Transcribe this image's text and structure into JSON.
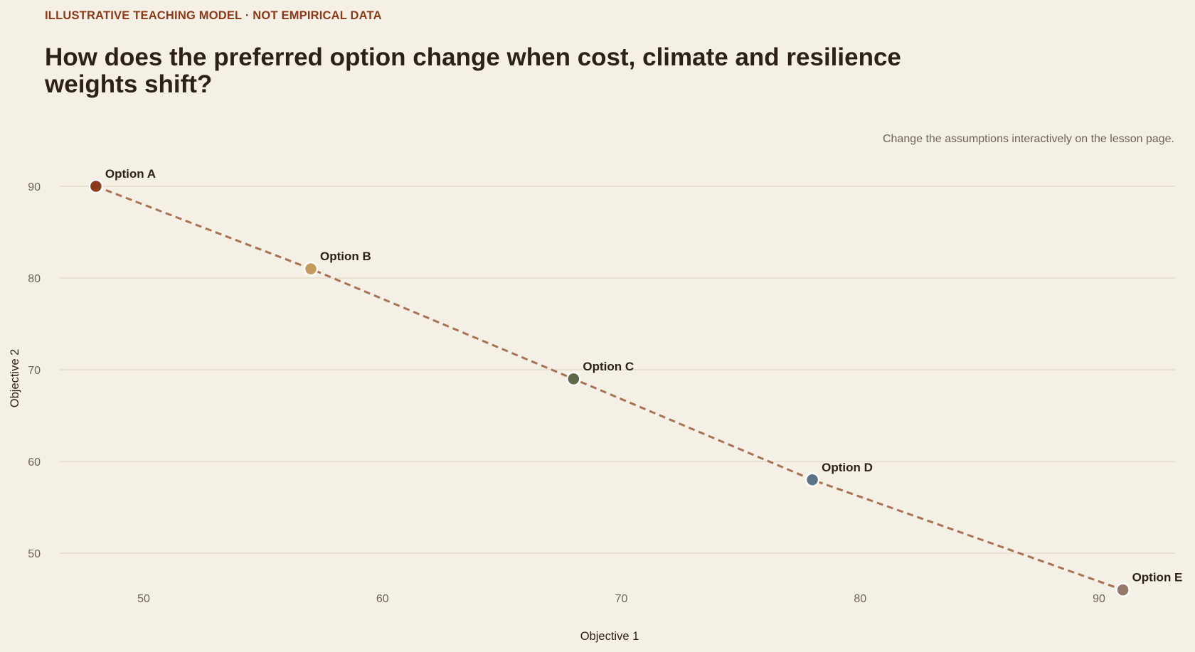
{
  "header": {
    "kicker": "ILLUSTRATIVE TEACHING MODEL · NOT EMPIRICAL DATA",
    "title": "How does the preferred option change when cost, climate and resilience weights shift?",
    "note": "Change the assumptions interactively on the lesson page."
  },
  "chart_data": {
    "type": "scatter",
    "xlabel": "Objective 1",
    "ylabel": "Objective 2",
    "xlim": [
      46,
      93
    ],
    "ylim": [
      45,
      92
    ],
    "x_ticks": [
      50,
      60,
      70,
      80,
      90
    ],
    "y_ticks": [
      50,
      60,
      70,
      80,
      90
    ],
    "grid": "horizontal",
    "connector": "dashed line joining points in order",
    "connector_color": "#a87352",
    "points": [
      {
        "label": "Option A",
        "x": 48,
        "y": 90,
        "color": "#8b3a1e"
      },
      {
        "label": "Option B",
        "x": 57,
        "y": 81,
        "color": "#c49a5e"
      },
      {
        "label": "Option C",
        "x": 68,
        "y": 69,
        "color": "#5e6a4a"
      },
      {
        "label": "Option D",
        "x": 78,
        "y": 58,
        "color": "#5a7385"
      },
      {
        "label": "Option E",
        "x": 91,
        "y": 46,
        "color": "#957868"
      }
    ]
  }
}
